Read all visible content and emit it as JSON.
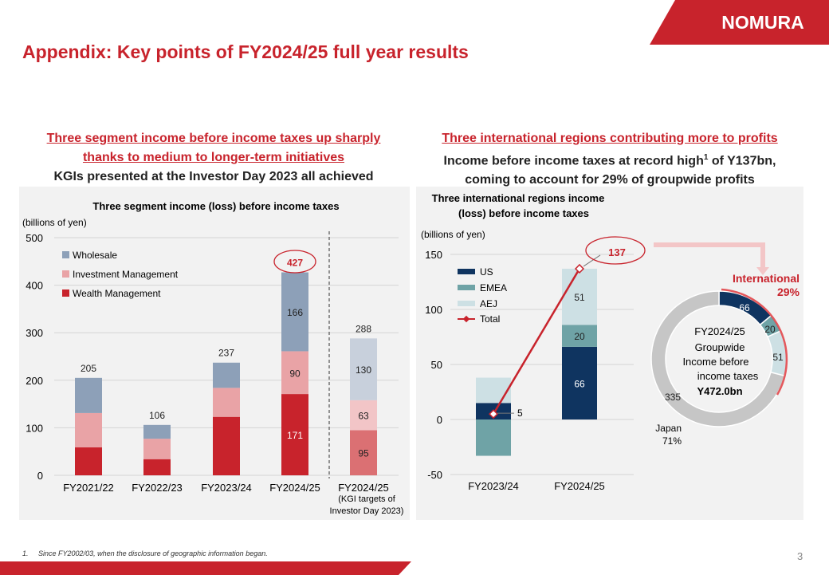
{
  "brand": {
    "logo_text": "NOMURA",
    "accent": "#c8232c"
  },
  "title": "Appendix: Key points of FY2024/25 full year results",
  "left": {
    "head_line1": "Three segment income before income taxes up sharply",
    "head_line2": "thanks to medium to longer-term initiatives",
    "head_line3": "KGIs presented at the Investor Day 2023 all achieved"
  },
  "right": {
    "head_line1": "Three international regions contributing more to profits",
    "head_line2a": "Income before income taxes at record high",
    "head_sup": "1",
    "head_line2b": " of Y137bn,",
    "head_line3": "coming to account for 29% of groupwide profits"
  },
  "chart_data": [
    {
      "type": "bar",
      "title": "Three segment income (loss) before income taxes",
      "ylabel": "(billions of yen)",
      "ylim": [
        0,
        500
      ],
      "yticks": [
        0,
        100,
        200,
        300,
        400,
        500
      ],
      "categories": [
        "FY2021/22",
        "FY2022/23",
        "FY2023/24",
        "FY2024/25",
        "FY2024/25"
      ],
      "category_note": "(KGI targets of Investor Day 2023)",
      "series": [
        {
          "name": "Wealth Management",
          "color": "#c8232c",
          "values": [
            59,
            34,
            123,
            171,
            95
          ]
        },
        {
          "name": "Investment Management",
          "color": "#e9a3a6",
          "values": [
            72,
            43,
            61,
            90,
            63
          ]
        },
        {
          "name": "Wholesale",
          "color": "#8da0b8",
          "values": [
            74,
            29,
            53,
            166,
            130
          ]
        }
      ],
      "totals": [
        205,
        106,
        237,
        427,
        288
      ],
      "segment_labels": [
        {
          "bar": 3,
          "series": 0,
          "text": "171"
        },
        {
          "bar": 3,
          "series": 1,
          "text": "90"
        },
        {
          "bar": 3,
          "series": 2,
          "text": "166"
        },
        {
          "bar": 4,
          "series": 0,
          "text": "95"
        },
        {
          "bar": 4,
          "series": 1,
          "text": "63"
        },
        {
          "bar": 4,
          "series": 2,
          "text": "130"
        }
      ],
      "highlight_total": "427",
      "legend_position": "top-left"
    },
    {
      "type": "bar",
      "title_line1": "Three international regions income",
      "title_line2": "(loss) before income taxes",
      "ylabel": "(billions of yen)",
      "ylim": [
        -50,
        150
      ],
      "yticks": [
        -50,
        0,
        50,
        100,
        150
      ],
      "categories": [
        "FY2023/24",
        "FY2024/25"
      ],
      "series": [
        {
          "name": "US",
          "color": "#0f3460",
          "values": [
            15,
            66
          ]
        },
        {
          "name": "EMEA",
          "color": "#6fa3a6",
          "values": [
            -33,
            20
          ]
        },
        {
          "name": "AEJ",
          "color": "#cde0e4",
          "values": [
            23,
            51
          ]
        }
      ],
      "total": {
        "name": "Total",
        "color": "#c8232c",
        "values": [
          5,
          137
        ]
      },
      "segment_labels": [
        {
          "bar": 1,
          "series": 0,
          "text": "66"
        },
        {
          "bar": 1,
          "series": 1,
          "text": "20"
        },
        {
          "bar": 1,
          "series": 2,
          "text": "51"
        }
      ],
      "total_labels": [
        "5",
        "137"
      ],
      "legend_position": "top-left"
    },
    {
      "type": "pie",
      "center_line1": "FY2024/25",
      "center_line2": "Groupwide",
      "center_line3": "Income before",
      "center_line4": "income taxes",
      "center_total": "Y472.0bn",
      "slices": [
        {
          "name": "US",
          "value": 66,
          "color": "#0f3460",
          "label": "66"
        },
        {
          "name": "EMEA",
          "value": 20,
          "color": "#6fa3a6",
          "label": "20"
        },
        {
          "name": "AEJ",
          "value": 51,
          "color": "#cde0e4",
          "label": "51"
        },
        {
          "name": "Japan",
          "value": 335,
          "color": "#c6c6c6",
          "label": "335"
        }
      ],
      "international_label": "International",
      "international_pct": "29%",
      "japan_label": "Japan",
      "japan_pct": "71%"
    }
  ],
  "footnote_num": "1.",
  "footnote": "Since FY2002/03, when the disclosure of geographic information began.",
  "page_number": "3"
}
